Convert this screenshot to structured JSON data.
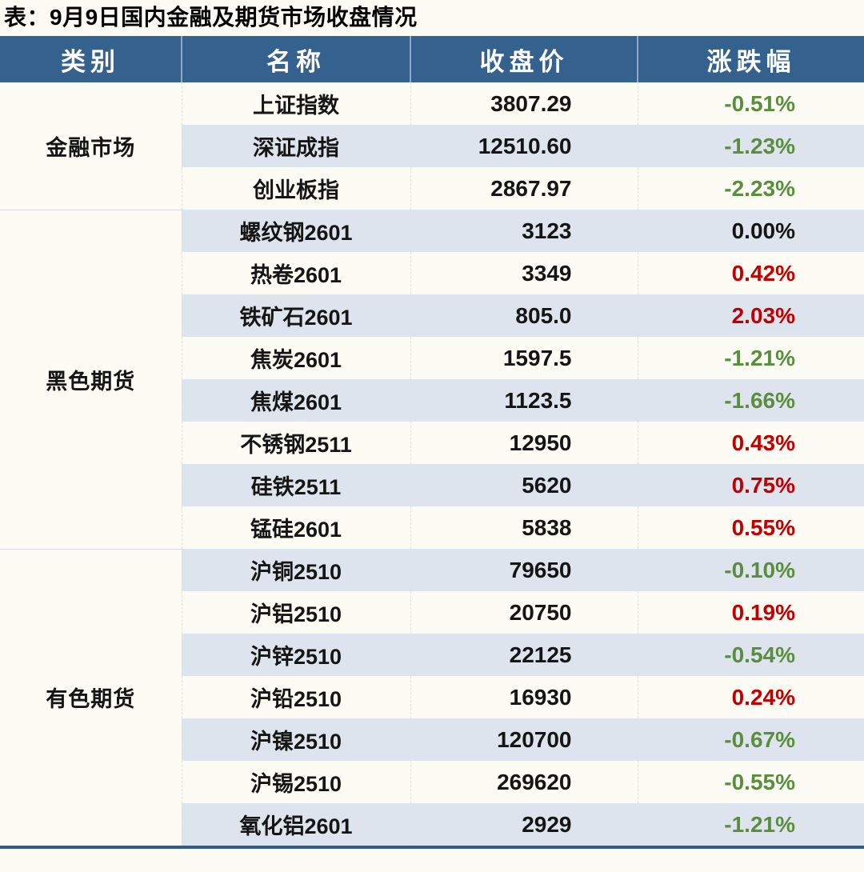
{
  "title": "表：9月9日国内金融及期货市场收盘情况",
  "colors": {
    "page_bg": "#FCFCF5",
    "header_bg": "#35618F",
    "header_divider": "#8FA8C4",
    "stripe_bg": "#DDE4EE",
    "text": "#151515",
    "up_red": "#C00000",
    "down_green": "#5A8E3E",
    "bottom_line": "#2E5C8B",
    "group_divider": "#D9D9D9"
  },
  "chart_data": {
    "type": "table",
    "title": "表：9月9日国内金融及期货市场收盘情况",
    "columns": [
      "类别",
      "名称",
      "收盘价",
      "涨跌幅"
    ],
    "groups": [
      {
        "category": "金融市场",
        "rows": [
          {
            "name": "上证指数",
            "close": "3807.29",
            "change": "-0.51%"
          },
          {
            "name": "深证成指",
            "close": "12510.60",
            "change": "-1.23%"
          },
          {
            "name": "创业板指",
            "close": "2867.97",
            "change": "-2.23%"
          }
        ]
      },
      {
        "category": "黑色期货",
        "rows": [
          {
            "name": "螺纹钢2601",
            "close": "3123",
            "change": "0.00%"
          },
          {
            "name": "热卷2601",
            "close": "3349",
            "change": "0.42%"
          },
          {
            "name": "铁矿石2601",
            "close": "805.0",
            "change": "2.03%"
          },
          {
            "name": "焦炭2601",
            "close": "1597.5",
            "change": "-1.21%"
          },
          {
            "name": "焦煤2601",
            "close": "1123.5",
            "change": "-1.66%"
          },
          {
            "name": "不锈钢2511",
            "close": "12950",
            "change": "0.43%"
          },
          {
            "name": "硅铁2511",
            "close": "5620",
            "change": "0.75%"
          },
          {
            "name": "锰硅2601",
            "close": "5838",
            "change": "0.55%"
          }
        ]
      },
      {
        "category": "有色期货",
        "rows": [
          {
            "name": "沪铜2510",
            "close": "79650",
            "change": "-0.10%"
          },
          {
            "name": "沪铝2510",
            "close": "20750",
            "change": "0.19%"
          },
          {
            "name": "沪锌2510",
            "close": "22125",
            "change": "-0.54%"
          },
          {
            "name": "沪铅2510",
            "close": "16930",
            "change": "0.24%"
          },
          {
            "name": "沪镍2510",
            "close": "120700",
            "change": "-0.67%"
          },
          {
            "name": "沪锡2510",
            "close": "269620",
            "change": "-0.55%"
          },
          {
            "name": "氧化铝2601",
            "close": "2929",
            "change": "-1.21%"
          }
        ]
      }
    ]
  }
}
